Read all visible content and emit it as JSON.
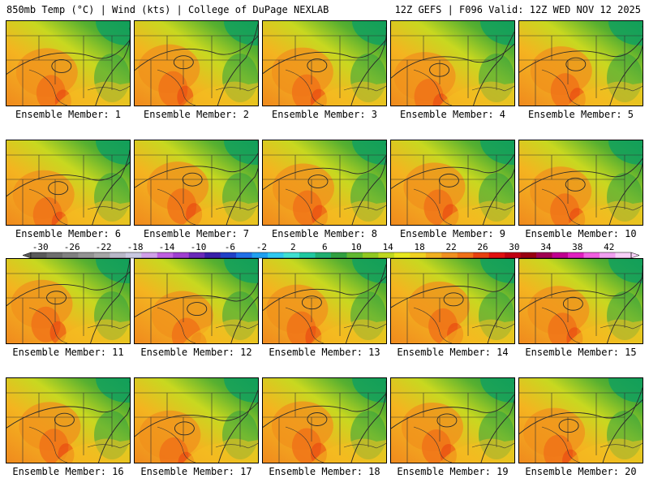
{
  "header": {
    "left": "850mb Temp (°C) | Wind (kts) | College of DuPage NEXLAB",
    "right": "12Z GEFS | F096 Valid: 12Z WED NOV 12 2025"
  },
  "panels": [
    {
      "caption": "Ensemble Member: 1"
    },
    {
      "caption": "Ensemble Member: 2"
    },
    {
      "caption": "Ensemble Member: 3"
    },
    {
      "caption": "Ensemble Member: 4"
    },
    {
      "caption": "Ensemble Member: 5"
    },
    {
      "caption": "Ensemble Member: 6"
    },
    {
      "caption": "Ensemble Member: 7"
    },
    {
      "caption": "Ensemble Member: 8"
    },
    {
      "caption": "Ensemble Member: 9"
    },
    {
      "caption": "Ensemble Member: 10"
    },
    {
      "caption": "Ensemble Member: 11"
    },
    {
      "caption": "Ensemble Member: 12"
    },
    {
      "caption": "Ensemble Member: 13"
    },
    {
      "caption": "Ensemble Member: 14"
    },
    {
      "caption": "Ensemble Member: 15"
    },
    {
      "caption": "Ensemble Member: 16"
    },
    {
      "caption": "Ensemble Member: 17"
    },
    {
      "caption": "Ensemble Member: 18"
    },
    {
      "caption": "Ensemble Member: 19"
    },
    {
      "caption": "Ensemble Member: 20"
    }
  ],
  "colorbar": {
    "labels": [
      "-30",
      "-26",
      "-22",
      "-18",
      "-14",
      "-10",
      "-6",
      "-2",
      "2",
      "6",
      "10",
      "14",
      "18",
      "22",
      "26",
      "30",
      "34",
      "38",
      "42"
    ],
    "colors": [
      "#5a5a5a",
      "#6e6e6e",
      "#808080",
      "#939393",
      "#a6a6a6",
      "#b8b8c8",
      "#c8c8e0",
      "#d0a0e8",
      "#c060e0",
      "#a040d0",
      "#6a2ab8",
      "#3820a8",
      "#2040c8",
      "#2070e8",
      "#20a0f0",
      "#30c8f0",
      "#40e0d0",
      "#20c8a0",
      "#20b070",
      "#30a040",
      "#60b830",
      "#90c820",
      "#c0d820",
      "#e8e820",
      "#f0d020",
      "#f0b020",
      "#f09020",
      "#f07018",
      "#e84010",
      "#e01010",
      "#c00010",
      "#980010",
      "#a00050",
      "#c00090",
      "#e020c0",
      "#f060e0",
      "#f0a0f0",
      "#f8d0f8"
    ]
  }
}
